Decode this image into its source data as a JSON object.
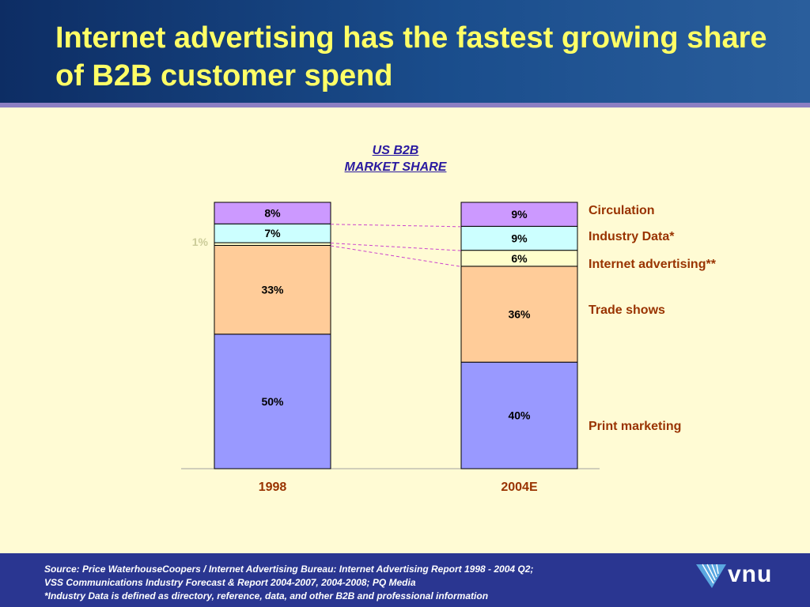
{
  "title": "Internet advertising has the fastest growing share of B2B customer spend",
  "chart_data": {
    "type": "bar",
    "stacked": true,
    "title_line1": "US B2B",
    "title_line2": "MARKET SHARE",
    "categories": [
      "1998",
      "2004E"
    ],
    "series": [
      {
        "name": "Print marketing",
        "values": [
          50,
          40
        ],
        "labels": [
          "50%",
          "40%"
        ],
        "color": "#9999ff"
      },
      {
        "name": "Trade shows",
        "values": [
          33,
          36
        ],
        "labels": [
          "33%",
          "36%"
        ],
        "color": "#ffcc99"
      },
      {
        "name": "Internet advertising**",
        "values": [
          1,
          6
        ],
        "labels": [
          "1%",
          "6%"
        ],
        "color": "#ffffcc"
      },
      {
        "name": "Industry Data*",
        "values": [
          7,
          9
        ],
        "labels": [
          "7%",
          "9%"
        ],
        "color": "#ccffff"
      },
      {
        "name": "Circulation",
        "values": [
          8,
          9
        ],
        "labels": [
          "8%",
          "9%"
        ],
        "color": "#cc99ff"
      }
    ],
    "legend_color": "#993300",
    "connector_color": "#cc44cc"
  },
  "footer": {
    "source_lines": [
      "Source: Price WaterhouseCoopers / Internet Advertising Bureau: Internet Advertising Report 1998 - 2004 Q2;",
      "VSS Communications Industry Forecast & Report 2004-2007, 2004-2008; PQ Media",
      "*Industry Data is defined as directory, reference, data, and other B2B and professional information"
    ],
    "logo_text": "vnu"
  }
}
